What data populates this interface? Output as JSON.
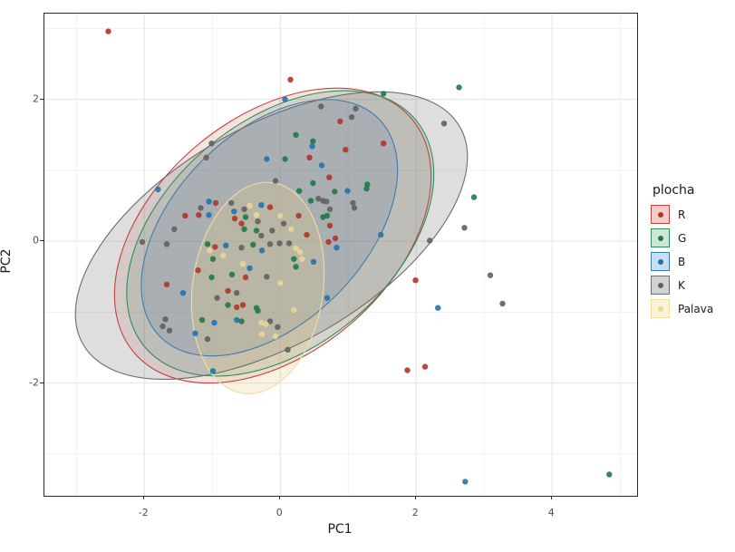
{
  "window": {
    "background": "#ffffff"
  },
  "chart_data": {
    "type": "scatter",
    "title": "",
    "xlabel": "PC1",
    "ylabel": "PC2",
    "xlim": [
      -3.47,
      5.25
    ],
    "ylim": [
      -3.59,
      3.21
    ],
    "x_major_ticks": [
      -2,
      0,
      2,
      4
    ],
    "x_minor_ticks": [
      -3,
      -1,
      1,
      3,
      5
    ],
    "y_major_ticks": [
      -2,
      0,
      2
    ],
    "y_minor_ticks": [
      -3,
      -1,
      1,
      3
    ],
    "grid": "major+minor",
    "grid_major_color": "#e3e3e3",
    "grid_minor_color": "#f1f1f1",
    "panel_border_color": "#2b2b2b",
    "legend_position": "right",
    "legend_title": "plocha",
    "point_radius": 3.2,
    "groups": [
      {
        "name": "R",
        "dot_color": "#b03528",
        "line_color": "#c0453c",
        "fill_color": "rgba(190,70,60,0.15)",
        "key_fill": "#f2cdc9",
        "ellipse": {
          "cx": -0.11,
          "cy": 0.08,
          "rx": 2.67,
          "ry": 1.66,
          "angle": -40
        },
        "points": [
          [
            -2.53,
            2.96
          ],
          [
            0.15,
            2.28
          ],
          [
            0.88,
            1.69
          ],
          [
            0.43,
            1.18
          ],
          [
            1.52,
            1.38
          ],
          [
            0.96,
            1.29
          ],
          [
            0.72,
            0.9
          ],
          [
            -1.4,
            0.36
          ],
          [
            -1.2,
            0.37
          ],
          [
            -0.95,
            0.54
          ],
          [
            -0.15,
            0.48
          ],
          [
            -0.67,
            0.32
          ],
          [
            -0.57,
            0.25
          ],
          [
            -0.96,
            -0.08
          ],
          [
            -0.51,
            -0.51
          ],
          [
            -1.21,
            -0.41
          ],
          [
            -1.67,
            -0.61
          ],
          [
            -0.77,
            -0.7
          ],
          [
            0.27,
            0.36
          ],
          [
            0.73,
            0.22
          ],
          [
            0.39,
            0.09
          ],
          [
            0.71,
            -0.01
          ],
          [
            0.81,
            0.04
          ],
          [
            1.99,
            -0.55
          ],
          [
            -0.64,
            -0.93
          ],
          [
            -0.55,
            -0.9
          ],
          [
            1.87,
            -1.82
          ],
          [
            2.13,
            -1.77
          ]
        ]
      },
      {
        "name": "G",
        "dot_color": "#1e7b44",
        "line_color": "#2f8e5b",
        "fill_color": "rgba(70,140,100,0.18)",
        "key_fill": "#cde6d5",
        "ellipse": {
          "cx": 0.0,
          "cy": 0.11,
          "rx": 2.6,
          "ry": 1.59,
          "angle": -40
        },
        "points": [
          [
            1.52,
            2.08
          ],
          [
            2.63,
            2.17
          ],
          [
            0.07,
            1.16
          ],
          [
            0.23,
            1.5
          ],
          [
            0.48,
            1.41
          ],
          [
            0.48,
            0.82
          ],
          [
            1.28,
            0.8
          ],
          [
            -0.51,
            0.34
          ],
          [
            -0.53,
            0.17
          ],
          [
            -0.35,
            0.15
          ],
          [
            -1.07,
            -0.04
          ],
          [
            -0.4,
            -0.05
          ],
          [
            -0.99,
            -0.25
          ],
          [
            -0.71,
            -0.47
          ],
          [
            -1.01,
            -0.51
          ],
          [
            0.28,
            0.71
          ],
          [
            0.45,
            0.57
          ],
          [
            0.8,
            0.7
          ],
          [
            1.27,
            0.74
          ],
          [
            0.63,
            0.34
          ],
          [
            0.69,
            0.36
          ],
          [
            0.2,
            -0.25
          ],
          [
            0.23,
            -0.36
          ],
          [
            -1.15,
            -1.11
          ],
          [
            -0.77,
            -0.9
          ],
          [
            -0.57,
            -1.13
          ],
          [
            -0.35,
            -0.94
          ],
          [
            -0.33,
            -0.98
          ],
          [
            2.85,
            0.62
          ],
          [
            4.84,
            -3.29
          ]
        ]
      },
      {
        "name": "B",
        "dot_color": "#2273ae",
        "line_color": "#3d7eae",
        "fill_color": "rgba(80,130,175,0.22)",
        "key_fill": "#c7dff0",
        "ellipse": {
          "cx": -0.16,
          "cy": 0.19,
          "rx": 2.27,
          "ry": 1.34,
          "angle": -45
        },
        "points": [
          [
            0.07,
            2.0
          ],
          [
            -0.2,
            1.16
          ],
          [
            0.47,
            1.34
          ],
          [
            0.61,
            1.07
          ],
          [
            -1.8,
            0.73
          ],
          [
            -1.05,
            0.56
          ],
          [
            -1.05,
            0.37
          ],
          [
            -0.68,
            0.42
          ],
          [
            -0.28,
            0.51
          ],
          [
            -0.8,
            -0.06
          ],
          [
            -0.27,
            -0.13
          ],
          [
            -0.45,
            -0.38
          ],
          [
            -1.43,
            -0.73
          ],
          [
            0.99,
            0.71
          ],
          [
            0.83,
            -0.09
          ],
          [
            1.48,
            0.09
          ],
          [
            0.49,
            -0.29
          ],
          [
            0.69,
            -0.8
          ],
          [
            -1.25,
            -1.3
          ],
          [
            -0.97,
            -1.15
          ],
          [
            -0.64,
            -1.11
          ],
          [
            -0.99,
            -1.83
          ],
          [
            2.32,
            -0.94
          ],
          [
            2.72,
            -3.39
          ]
        ]
      },
      {
        "name": "K",
        "dot_color": "#606060",
        "line_color": "#6e6e6e",
        "fill_color": "rgba(125,125,125,0.25)",
        "key_fill": "#d2d2d2",
        "ellipse": {
          "cx": -0.13,
          "cy": 0.08,
          "rx": 3.2,
          "ry": 1.53,
          "angle": -30
        },
        "points": [
          [
            2.41,
            1.66
          ],
          [
            -1.01,
            1.38
          ],
          [
            -1.09,
            1.18
          ],
          [
            -0.07,
            0.85
          ],
          [
            0.6,
            1.9
          ],
          [
            1.11,
            1.87
          ],
          [
            1.05,
            1.75
          ],
          [
            -2.03,
            -0.01
          ],
          [
            -1.67,
            -0.04
          ],
          [
            -1.56,
            0.17
          ],
          [
            -1.17,
            0.47
          ],
          [
            -0.72,
            0.54
          ],
          [
            -0.53,
            0.45
          ],
          [
            -0.33,
            0.28
          ],
          [
            -0.28,
            0.08
          ],
          [
            -0.12,
            0.15
          ],
          [
            0.05,
            0.25
          ],
          [
            -0.57,
            -0.09
          ],
          [
            -0.15,
            -0.04
          ],
          [
            -0.01,
            -0.03
          ],
          [
            0.13,
            -0.03
          ],
          [
            -0.93,
            -0.8
          ],
          [
            -0.64,
            -0.73
          ],
          [
            -0.2,
            -0.5
          ],
          [
            0.56,
            0.6
          ],
          [
            0.63,
            0.57
          ],
          [
            0.68,
            0.56
          ],
          [
            0.73,
            0.45
          ],
          [
            1.07,
            0.54
          ],
          [
            1.09,
            0.47
          ],
          [
            2.2,
            0.01
          ],
          [
            -1.69,
            -1.1
          ],
          [
            -1.73,
            -1.2
          ],
          [
            -1.63,
            -1.26
          ],
          [
            -1.07,
            -1.38
          ],
          [
            -0.15,
            -1.13
          ],
          [
            -0.04,
            -1.21
          ],
          [
            0.11,
            -1.53
          ],
          [
            2.71,
            0.19
          ],
          [
            3.09,
            -0.48
          ],
          [
            3.27,
            -0.88
          ]
        ]
      },
      {
        "name": "Palava",
        "dot_color": "#e8d698",
        "line_color": "#f0dca4",
        "fill_color": "rgba(235,205,130,0.25)",
        "key_fill": "#fcf2d9",
        "ellipse": {
          "cx": -0.33,
          "cy": -0.66,
          "rx": 0.96,
          "ry": 1.5,
          "angle": 8
        },
        "points": [
          [
            -0.45,
            0.5
          ],
          [
            -0.35,
            0.37
          ],
          [
            0.0,
            0.36
          ],
          [
            -1.04,
            -0.13
          ],
          [
            -0.84,
            -0.2
          ],
          [
            -0.55,
            -0.32
          ],
          [
            0.0,
            -0.59
          ],
          [
            0.16,
            0.17
          ],
          [
            0.23,
            -0.1
          ],
          [
            0.29,
            -0.15
          ],
          [
            0.32,
            -0.25
          ],
          [
            -0.28,
            -1.15
          ],
          [
            -0.21,
            -1.17
          ],
          [
            -0.27,
            -1.31
          ],
          [
            -0.07,
            -1.34
          ],
          [
            0.2,
            -0.97
          ]
        ]
      }
    ]
  }
}
